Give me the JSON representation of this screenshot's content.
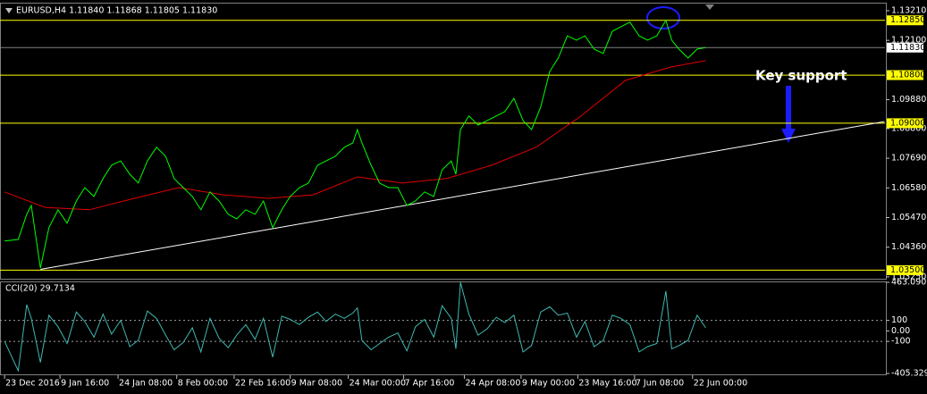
{
  "chart_data": [
    {
      "type": "line",
      "title": "EURUSD,H4  1.11840 1.11868 1.11805 1.11830",
      "annotation": "Key support",
      "xlim": [
        -7,
        1350
      ],
      "ylim": [
        1.0318,
        1.1351
      ],
      "yticks": [
        {
          "value": 1.1321,
          "label": "1.13210"
        },
        {
          "value": 1.121,
          "label": "1.12100"
        },
        {
          "value": 1.0988,
          "label": "1.09880"
        },
        {
          "value": 1.088,
          "label": "1.08800"
        },
        {
          "value": 1.0769,
          "label": "1.07690"
        },
        {
          "value": 1.0658,
          "label": "1.06580"
        },
        {
          "value": 1.0547,
          "label": "1.05470"
        },
        {
          "value": 1.0436,
          "label": "1.04360"
        },
        {
          "value": 1.0325,
          "label": "1.03250"
        }
      ],
      "x": [
        0,
        21,
        34,
        41,
        55,
        68,
        82,
        96,
        110,
        123,
        137,
        151,
        164,
        178,
        192,
        205,
        219,
        233,
        247,
        260,
        274,
        288,
        301,
        315,
        329,
        343,
        356,
        370,
        384,
        397,
        411,
        425,
        438,
        452,
        466,
        480,
        493,
        507,
        521,
        534,
        541,
        548,
        562,
        575,
        589,
        603,
        617,
        630,
        644,
        658,
        671,
        685,
        692,
        699,
        712,
        726,
        740,
        754,
        767,
        781,
        795,
        808,
        822,
        836,
        849,
        863,
        877,
        890,
        904,
        918,
        932,
        945,
        959,
        973,
        986,
        1000,
        1014,
        1023,
        1034,
        1048,
        1062,
        1075
      ],
      "series": [
        {
          "color": "#00ff00",
          "values": [
            1.0459,
            1.0465,
            1.0559,
            1.0592,
            1.0358,
            1.0509,
            1.0576,
            1.0526,
            1.0609,
            1.0659,
            1.0626,
            1.0693,
            1.0743,
            1.0759,
            1.0709,
            1.0676,
            1.0759,
            1.081,
            1.0776,
            1.0693,
            1.0659,
            1.0626,
            1.0576,
            1.0643,
            1.0609,
            1.0559,
            1.0542,
            1.0576,
            1.0559,
            1.0609,
            1.0509,
            1.0576,
            1.0626,
            1.0659,
            1.0676,
            1.0743,
            1.0759,
            1.0776,
            1.081,
            1.0826,
            1.0876,
            1.0826,
            1.0743,
            1.0676,
            1.0659,
            1.0659,
            1.0592,
            1.0609,
            1.0643,
            1.0626,
            1.0726,
            1.0759,
            1.0709,
            1.0876,
            1.0927,
            1.0893,
            1.091,
            1.0927,
            1.0943,
            1.0993,
            1.091,
            1.0876,
            1.096,
            1.1094,
            1.1144,
            1.1227,
            1.1211,
            1.1227,
            1.1177,
            1.1161,
            1.1244,
            1.1261,
            1.1278,
            1.1227,
            1.1211,
            1.1227,
            1.1285,
            1.1211,
            1.1177,
            1.1144,
            1.1177,
            1.1183
          ]
        }
      ],
      "ma": {
        "color": "#e00000",
        "x": [
          0,
          62,
          130,
          199,
          267,
          336,
          404,
          473,
          541,
          610,
          678,
          747,
          815,
          884,
          952,
          1021,
          1075
        ],
        "values": [
          1.0643,
          1.0585,
          1.0576,
          1.0619,
          1.0659,
          1.0632,
          1.0619,
          1.0632,
          1.0699,
          1.0676,
          1.0693,
          1.0743,
          1.081,
          1.0927,
          1.106,
          1.111,
          1.1134
        ]
      },
      "trendline": {
        "color": "#ffffff",
        "x": [
          55,
          1349
        ],
        "values": [
          1.0353,
          1.0906
        ]
      },
      "levels": [
        {
          "value": 1.1285,
          "label": "1.12850"
        },
        {
          "value": 1.108,
          "label": "1.10800"
        },
        {
          "value": 1.09,
          "label": "1.09000"
        },
        {
          "value": 1.035,
          "label": "1.03500"
        }
      ],
      "level_color": "#ffff00",
      "last": {
        "value": 1.1183,
        "label": "1.11830"
      }
    },
    {
      "type": "line",
      "title": "CCI(20) 29.7134",
      "xlim": [
        -7,
        1350
      ],
      "ylim": [
        -405.3299,
        463.0907
      ],
      "yticks": [
        463.0907,
        100,
        {
          "value": 0,
          "label": "0.00"
        },
        -100,
        -405.3299
      ],
      "levels": [
        100,
        -100
      ],
      "xticks": [
        {
          "value": 0,
          "label": "23 Dec 2016"
        },
        {
          "value": 85,
          "label": "9 Jan 16:00"
        },
        {
          "value": 174,
          "label": "24 Jan 08:00"
        },
        {
          "value": 264,
          "label": "8 Feb 00:00"
        },
        {
          "value": 352,
          "label": "22 Feb 16:00"
        },
        {
          "value": 438,
          "label": "9 Mar 08:00"
        },
        {
          "value": 527,
          "label": "24 Mar 00:00"
        },
        {
          "value": 612,
          "label": "7 Apr 16:00"
        },
        {
          "value": 705,
          "label": "24 Apr 08:00"
        },
        {
          "value": 792,
          "label": "9 May 00:00"
        },
        {
          "value": 879,
          "label": "23 May 16:00"
        },
        {
          "value": 966,
          "label": "7 Jun 08:00"
        },
        {
          "value": 1055,
          "label": "22 Jun 00:00"
        }
      ],
      "x": [
        0,
        21,
        34,
        41,
        55,
        68,
        82,
        96,
        110,
        123,
        137,
        151,
        164,
        178,
        192,
        205,
        219,
        233,
        247,
        260,
        274,
        288,
        301,
        315,
        329,
        343,
        356,
        370,
        384,
        397,
        411,
        425,
        438,
        452,
        466,
        480,
        493,
        507,
        521,
        534,
        541,
        548,
        562,
        575,
        589,
        603,
        617,
        630,
        644,
        658,
        671,
        685,
        692,
        699,
        712,
        726,
        740,
        754,
        767,
        781,
        795,
        808,
        822,
        836,
        849,
        863,
        877,
        890,
        904,
        918,
        932,
        945,
        959,
        973,
        986,
        1000,
        1014,
        1023,
        1034,
        1048,
        1062,
        1075
      ],
      "series": [
        {
          "color": "#3fb8b0",
          "values": [
            -100,
            -380,
            250,
            120,
            -300,
            150,
            40,
            -120,
            180,
            90,
            -60,
            160,
            -30,
            100,
            -150,
            -90,
            190,
            120,
            -40,
            -180,
            -110,
            30,
            -200,
            120,
            -70,
            -160,
            -40,
            60,
            -80,
            120,
            -250,
            140,
            110,
            60,
            130,
            180,
            90,
            160,
            120,
            170,
            220,
            -90,
            -180,
            -120,
            -60,
            -20,
            -190,
            40,
            110,
            -60,
            240,
            120,
            -170,
            463.0907,
            160,
            -40,
            20,
            130,
            80,
            150,
            -200,
            -140,
            180,
            230,
            150,
            170,
            -60,
            90,
            -150,
            -90,
            150,
            120,
            60,
            -200,
            -150,
            -120,
            380,
            -170,
            -140,
            -90,
            150,
            29.7134
          ]
        }
      ]
    }
  ]
}
